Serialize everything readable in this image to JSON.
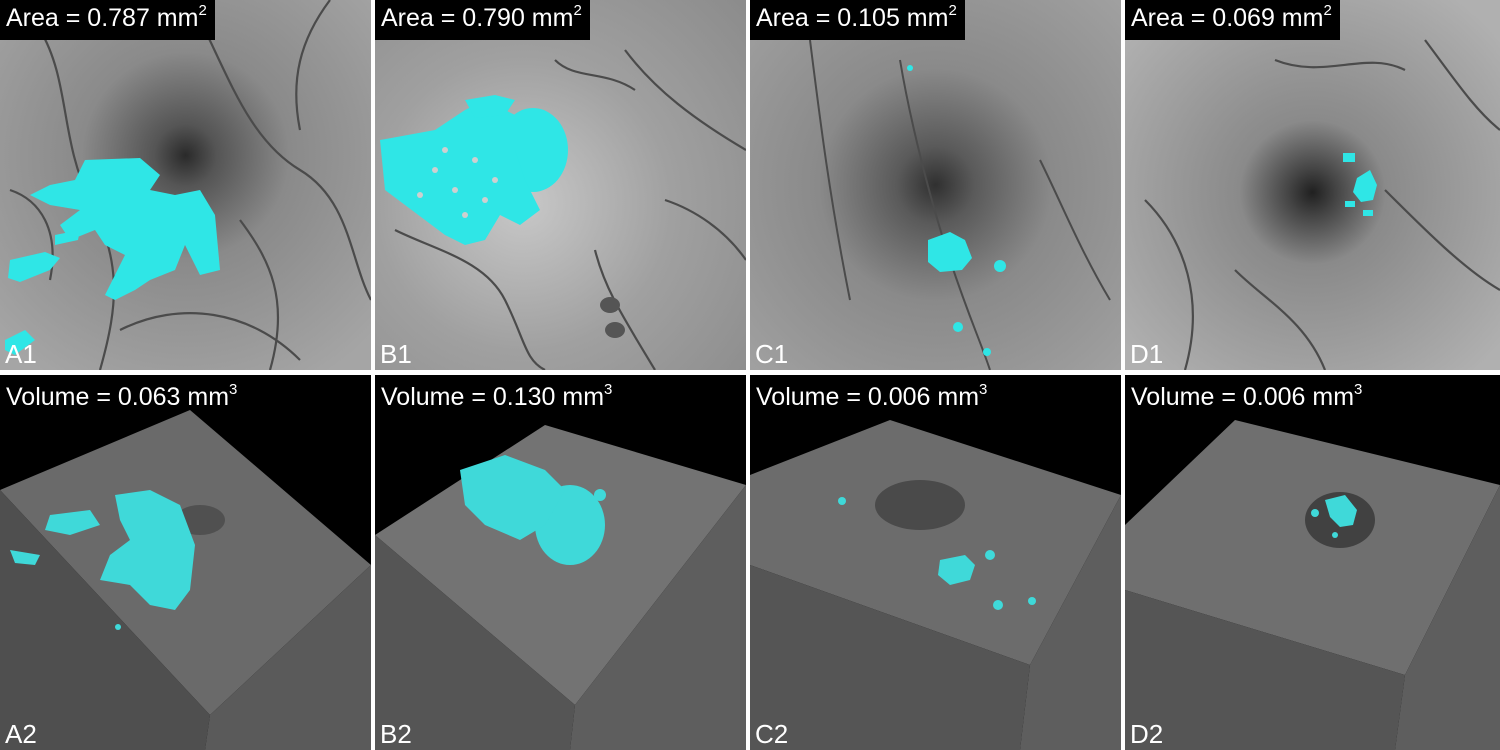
{
  "panels": {
    "a1": {
      "label": "A1",
      "measure": "Area = 0.787 mm",
      "exponent": "2"
    },
    "b1": {
      "label": "B1",
      "measure": "Area = 0.790 mm",
      "exponent": "2"
    },
    "c1": {
      "label": "C1",
      "measure": "Area = 0.105 mm",
      "exponent": "2"
    },
    "d1": {
      "label": "D1",
      "measure": "Area = 0.069 mm",
      "exponent": "2"
    },
    "a2": {
      "label": "A2",
      "measure": "Volume = 0.063 mm",
      "exponent": "3"
    },
    "b2": {
      "label": "B2",
      "measure": "Volume = 0.130 mm",
      "exponent": "3"
    },
    "c2": {
      "label": "C2",
      "measure": "Volume = 0.006 mm",
      "exponent": "3"
    },
    "d2": {
      "label": "D2",
      "measure": "Volume = 0.006 mm",
      "exponent": "3"
    }
  },
  "colors": {
    "lesion": "#2fe6e6",
    "fundus_bg": "#9a9a9a",
    "vessel": "#4a4a4a",
    "block": "#6e6e6e",
    "background": "#000000"
  }
}
